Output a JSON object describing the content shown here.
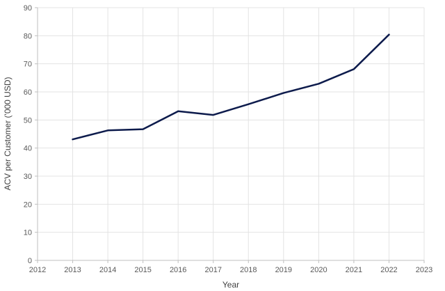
{
  "chart_data": {
    "type": "line",
    "xlabel": "Year",
    "ylabel": "ACV per Customer ('000 USD)",
    "xlim": [
      2012,
      2023
    ],
    "ylim": [
      0,
      90
    ],
    "x_ticks": [
      2012,
      2013,
      2014,
      2015,
      2016,
      2017,
      2018,
      2019,
      2020,
      2021,
      2022,
      2023
    ],
    "y_ticks": [
      0,
      10,
      20,
      30,
      40,
      50,
      60,
      70,
      80,
      90
    ],
    "grid": true,
    "legend": "none",
    "line_color": "#0d1b4c",
    "series": [
      {
        "x": [
          2013,
          2014,
          2015,
          2016,
          2017,
          2018,
          2019,
          2020,
          2021,
          2022
        ],
        "values": [
          43.1,
          46.3,
          46.7,
          53.1,
          51.8,
          55.6,
          59.6,
          62.9,
          68.1,
          80.4
        ]
      }
    ]
  }
}
